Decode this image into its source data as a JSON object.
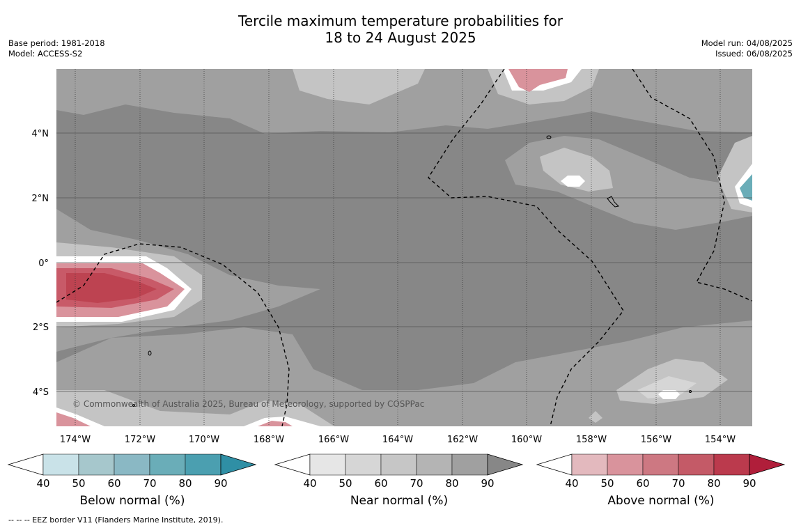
{
  "title": {
    "line1": "Tercile maximum temperature probabilities for",
    "line2": "18 to 24 August 2025"
  },
  "meta_left": {
    "base_period": "Base period: 1981-2018",
    "model": "Model: ACCESS-S2"
  },
  "meta_right": {
    "model_run": "Model run: 04/08/2025",
    "issued": "Issued: 06/08/2025"
  },
  "map": {
    "lat_labels": [
      "4°N",
      "2°N",
      "0°",
      "2°S",
      "4°S"
    ],
    "lon_labels": [
      "174°W",
      "172°W",
      "170°W",
      "168°W",
      "166°W",
      "164°W",
      "162°W",
      "160°W",
      "158°W",
      "156°W",
      "154°W"
    ],
    "copyright": "© Commonwealth of Australia 2025, Bureau of Meteorology, supported by COSPPac",
    "colors": {
      "near_base": "#878787",
      "near_70": "#a0a0a0",
      "near_60": "#c4c4c4",
      "above_50": "#d98f97",
      "above_70": "#c85a68",
      "above_80": "#bd4351",
      "below_80": "#4ba2b2",
      "eez": "#000000"
    }
  },
  "colorbars": [
    {
      "label": "Below normal (%)",
      "ticks": [
        "40",
        "50",
        "60",
        "70",
        "80",
        "90"
      ],
      "colors": [
        "#ffffff",
        "#c9e2e8",
        "#a6c7cc",
        "#8ab8c4",
        "#6aadb8",
        "#4b9fb0",
        "#2f8fa5"
      ]
    },
    {
      "label": "Near normal (%)",
      "ticks": [
        "40",
        "50",
        "60",
        "70",
        "80",
        "90"
      ],
      "colors": [
        "#ffffff",
        "#e6e6e6",
        "#d6d6d6",
        "#c6c6c6",
        "#b4b4b4",
        "#a0a0a0",
        "#878787"
      ]
    },
    {
      "label": "Above normal (%)",
      "ticks": [
        "40",
        "50",
        "60",
        "70",
        "80",
        "90"
      ],
      "colors": [
        "#ffffff",
        "#e3b9be",
        "#d9939c",
        "#cd7882",
        "#c45a67",
        "#bb3a4d",
        "#b01e3a"
      ]
    }
  ],
  "footer": "--  --  -- EEZ border V11 (Flanders Marine Institute, 2019)."
}
